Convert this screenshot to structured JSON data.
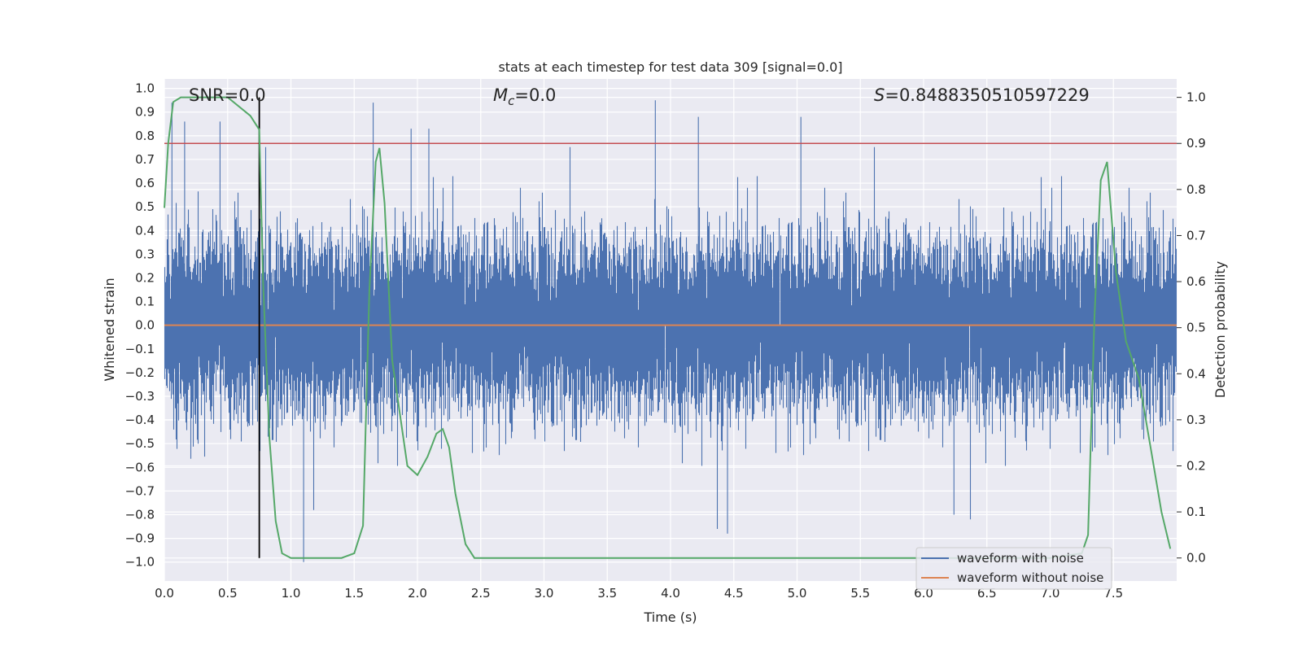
{
  "chart_data": {
    "type": "line",
    "title": "stats at each timestep for test data 309 [signal=0.0]",
    "xlabel": "Time (s)",
    "ylabel": "Whitened strain",
    "ylabel_right": "Detection probability",
    "xlim": [
      0.0,
      8.0
    ],
    "ylim": [
      -1.08,
      1.04
    ],
    "ylim_right": [
      -0.05,
      1.04
    ],
    "x_ticks": [
      "0.0",
      "0.5",
      "1.0",
      "1.5",
      "2.0",
      "2.5",
      "3.0",
      "3.5",
      "4.0",
      "4.5",
      "5.0",
      "5.5",
      "6.0",
      "6.5",
      "7.0",
      "7.5"
    ],
    "y_ticks": [
      "1.0",
      "0.9",
      "0.8",
      "0.7",
      "0.6",
      "0.5",
      "0.4",
      "0.3",
      "0.2",
      "0.1",
      "0.0",
      "-0.1",
      "-0.2",
      "-0.3",
      "-0.4",
      "-0.5",
      "-0.6",
      "-0.7",
      "-0.8",
      "-0.9",
      "-1.0"
    ],
    "y_ticks_right": [
      "1.0",
      "0.9",
      "0.8",
      "0.7",
      "0.6",
      "0.5",
      "0.4",
      "0.3",
      "0.2",
      "0.1",
      "0.0"
    ],
    "grid": true,
    "annotations": {
      "snr": "SNR=0.0",
      "mc_symbol": "M",
      "mc_subscript": "c",
      "mc_value": "=0.0",
      "s_symbol": "S",
      "s_value": "=0.8488350510597229"
    },
    "threshold_line": {
      "axis": "right",
      "value": 0.9,
      "color": "#c44e52"
    },
    "vertical_marker": {
      "x": 0.75,
      "color": "#000000"
    },
    "series": [
      {
        "name": "waveform with noise",
        "color": "#4c72b0",
        "axis": "left",
        "sample_rate_hz": 2048,
        "duration_s": 8.0,
        "envelope_p98": 0.36,
        "notable_peaks": [
          {
            "x": 0.06,
            "y": 0.94
          },
          {
            "x": 0.16,
            "y": 0.86
          },
          {
            "x": 0.44,
            "y": 0.86
          },
          {
            "x": 1.65,
            "y": 0.94
          },
          {
            "x": 1.95,
            "y": 0.83
          },
          {
            "x": 2.09,
            "y": 0.83
          },
          {
            "x": 3.88,
            "y": 0.95
          },
          {
            "x": 4.22,
            "y": 0.88
          },
          {
            "x": 5.03,
            "y": 0.88
          },
          {
            "x": 1.1,
            "y": -1.0
          },
          {
            "x": 1.18,
            "y": -0.78
          },
          {
            "x": 4.37,
            "y": -0.86
          },
          {
            "x": 4.45,
            "y": -0.88
          },
          {
            "x": 6.37,
            "y": -0.82
          },
          {
            "x": 6.24,
            "y": -0.8
          }
        ]
      },
      {
        "name": "waveform without noise",
        "color": "#dd8452",
        "axis": "left",
        "constant_value": 0.0
      },
      {
        "name": "detection probability",
        "color": "#55a868",
        "axis": "right",
        "x": [
          0.0,
          0.03,
          0.07,
          0.13,
          0.2,
          0.35,
          0.5,
          0.68,
          0.75,
          0.78,
          0.83,
          0.88,
          0.93,
          1.0,
          1.1,
          1.25,
          1.4,
          1.5,
          1.57,
          1.62,
          1.67,
          1.7,
          1.74,
          1.8,
          1.92,
          2.0,
          2.08,
          2.15,
          2.2,
          2.25,
          2.3,
          2.38,
          2.45,
          2.6,
          3.0,
          4.0,
          5.0,
          6.0,
          7.0,
          7.25,
          7.3,
          7.35,
          7.4,
          7.45,
          7.52,
          7.6,
          7.7,
          7.8,
          7.88,
          7.95
        ],
        "y": [
          0.76,
          0.9,
          0.99,
          1.0,
          1.0,
          1.0,
          1.0,
          0.96,
          0.93,
          0.6,
          0.26,
          0.08,
          0.01,
          0.0,
          0.0,
          0.0,
          0.0,
          0.01,
          0.07,
          0.58,
          0.86,
          0.89,
          0.77,
          0.43,
          0.2,
          0.18,
          0.22,
          0.27,
          0.28,
          0.24,
          0.14,
          0.03,
          0.0,
          0.0,
          0.0,
          0.0,
          0.0,
          0.0,
          0.0,
          0.01,
          0.05,
          0.52,
          0.82,
          0.86,
          0.62,
          0.47,
          0.39,
          0.23,
          0.1,
          0.02
        ]
      }
    ],
    "legend": {
      "position": "lower-right",
      "entries": [
        {
          "label": "waveform with noise",
          "color": "#4c72b0"
        },
        {
          "label": "waveform without noise",
          "color": "#dd8452"
        }
      ]
    }
  }
}
